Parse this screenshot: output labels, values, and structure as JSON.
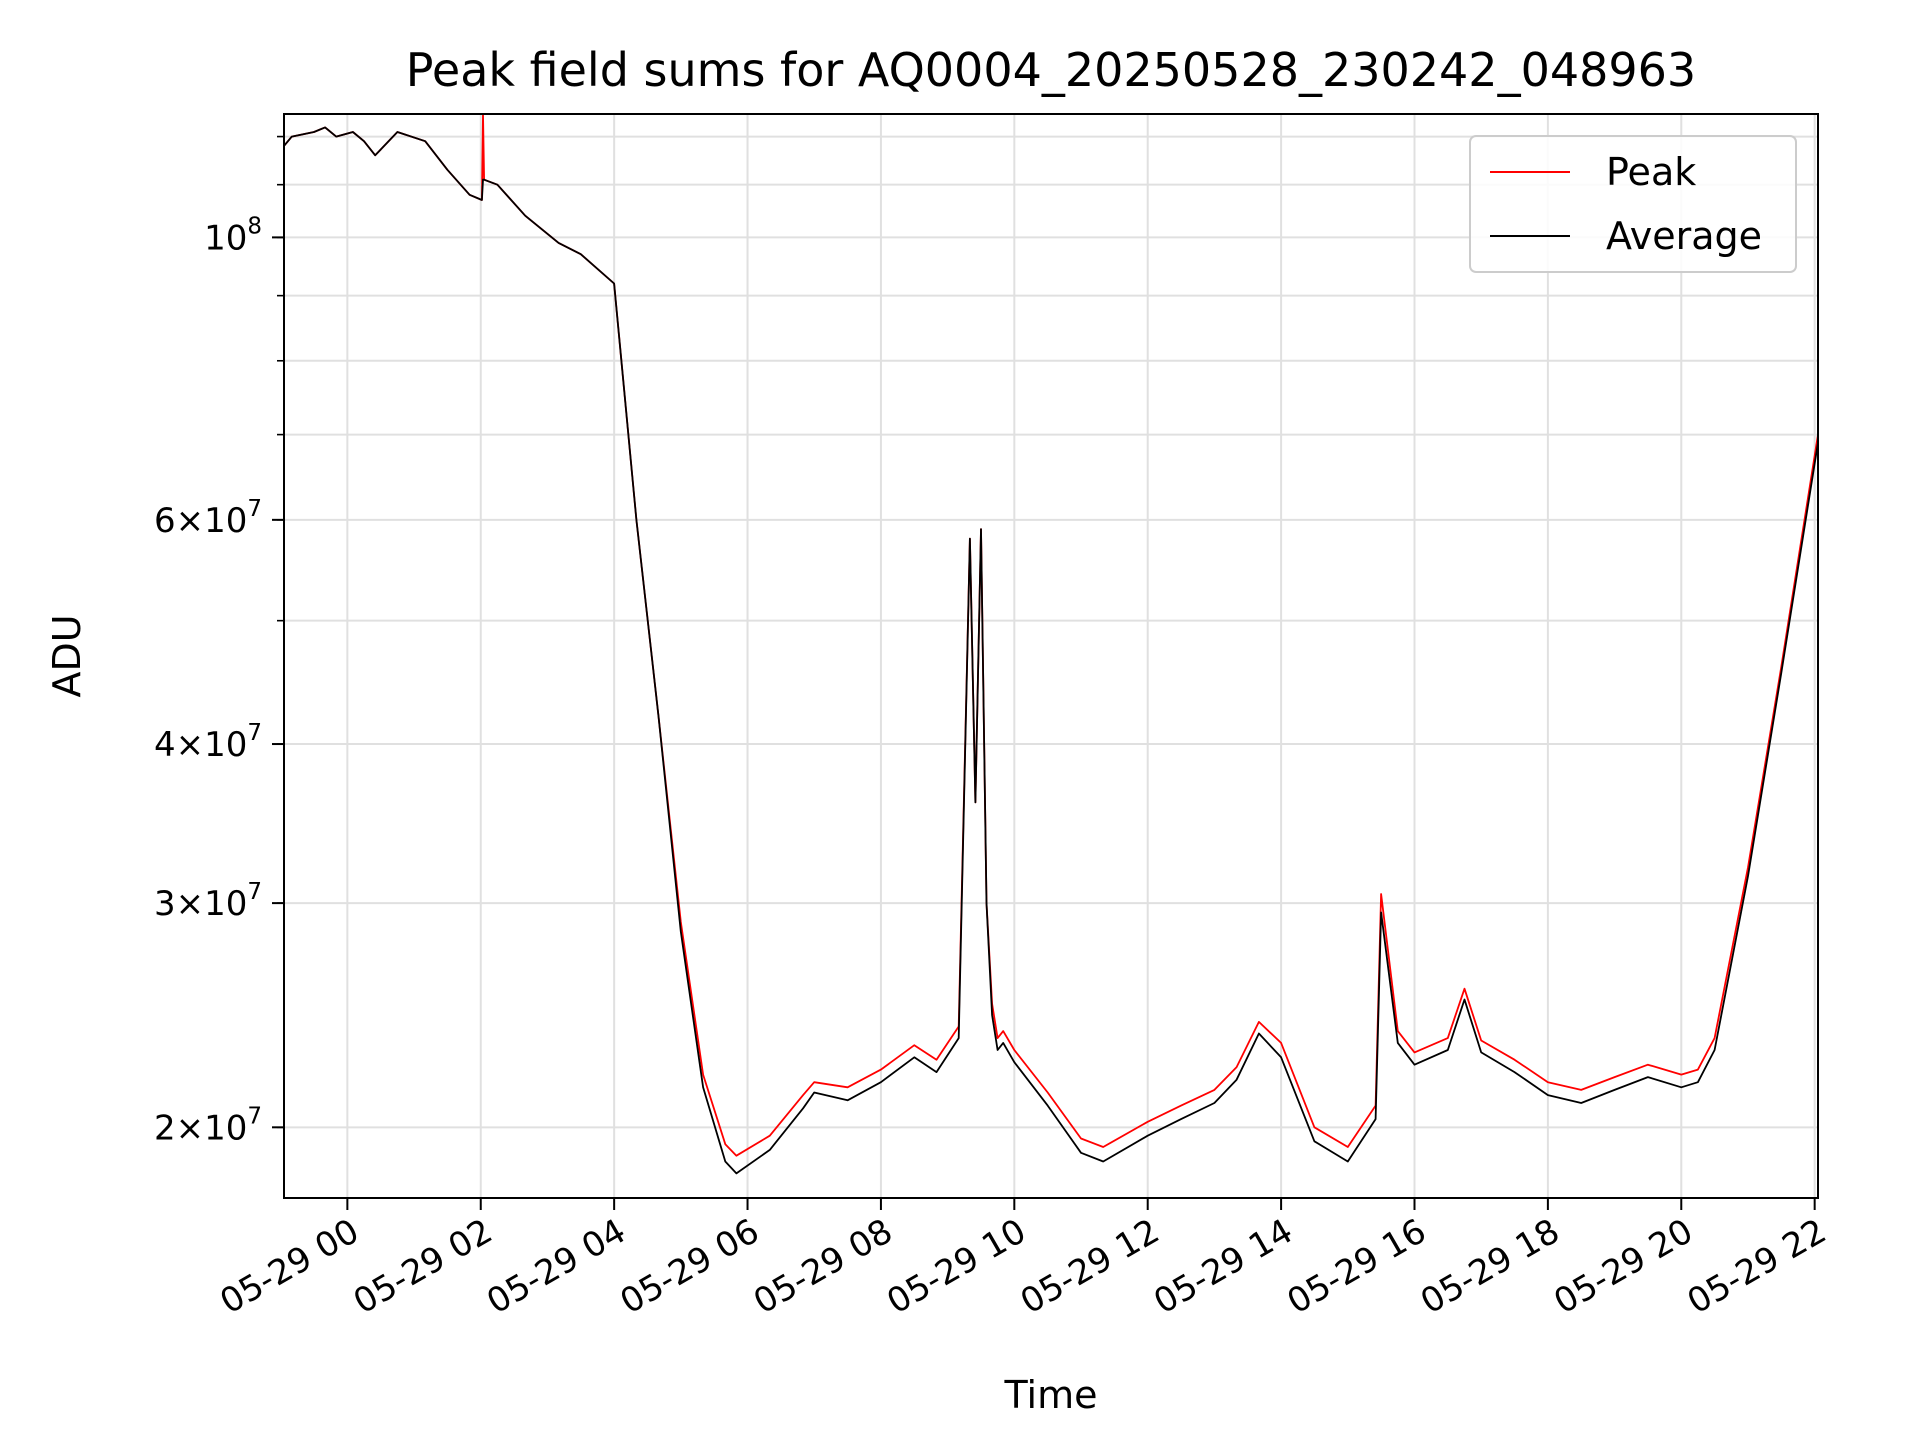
{
  "chart_data": {
    "type": "line",
    "title": "Peak field sums for AQ0004_20250528_230242_048963",
    "xlabel": "Time",
    "ylabel": "ADU",
    "yscale": "log",
    "xlim": [
      "2025-05-28 23:03",
      "2025-05-29 22:03"
    ],
    "ylim": [
      17600000,
      125000000
    ],
    "grid": true,
    "legend_position": "top-right",
    "x_ticks": [
      "05-29 00",
      "05-29 02",
      "05-29 04",
      "05-29 06",
      "05-29 08",
      "05-29 10",
      "05-29 12",
      "05-29 14",
      "05-29 16",
      "05-29 18",
      "05-29 20",
      "05-29 22"
    ],
    "y_ticks": [
      {
        "value": 100000000,
        "mantissa": "",
        "exponent": "8"
      },
      {
        "value": 60000000,
        "mantissa": "6",
        "exponent": "7"
      },
      {
        "value": 40000000,
        "mantissa": "4",
        "exponent": "7"
      },
      {
        "value": 30000000,
        "mantissa": "3",
        "exponent": "7"
      },
      {
        "value": 20000000,
        "mantissa": "2",
        "exponent": "7"
      }
    ],
    "series": [
      {
        "name": "Peak",
        "color": "#ff0000",
        "x": [
          "2025-05-28 23:03",
          "2025-05-28 23:10",
          "2025-05-28 23:30",
          "2025-05-28 23:40",
          "2025-05-28 23:50",
          "2025-05-29 00:05",
          "2025-05-29 00:15",
          "2025-05-29 00:25",
          "2025-05-29 00:45",
          "2025-05-29 01:10",
          "2025-05-29 01:30",
          "2025-05-29 01:50",
          "2025-05-29 02:01",
          "2025-05-29 02:02",
          "2025-05-29 02:03",
          "2025-05-29 02:15",
          "2025-05-29 02:40",
          "2025-05-29 03:10",
          "2025-05-29 03:30",
          "2025-05-29 04:00",
          "2025-05-29 04:20",
          "2025-05-29 04:40",
          "2025-05-29 05:00",
          "2025-05-29 05:20",
          "2025-05-29 05:40",
          "2025-05-29 05:50",
          "2025-05-29 06:20",
          "2025-05-29 06:50",
          "2025-05-29 07:00",
          "2025-05-29 07:30",
          "2025-05-29 08:00",
          "2025-05-29 08:30",
          "2025-05-29 08:50",
          "2025-05-29 09:10",
          "2025-05-29 09:20",
          "2025-05-29 09:25",
          "2025-05-29 09:30",
          "2025-05-29 09:35",
          "2025-05-29 09:40",
          "2025-05-29 09:45",
          "2025-05-29 09:50",
          "2025-05-29 10:00",
          "2025-05-29 10:30",
          "2025-05-29 11:00",
          "2025-05-29 11:20",
          "2025-05-29 12:00",
          "2025-05-29 12:30",
          "2025-05-29 13:00",
          "2025-05-29 13:20",
          "2025-05-29 13:40",
          "2025-05-29 14:00",
          "2025-05-29 14:30",
          "2025-05-29 15:00",
          "2025-05-29 15:25",
          "2025-05-29 15:30",
          "2025-05-29 15:45",
          "2025-05-29 16:00",
          "2025-05-29 16:30",
          "2025-05-29 16:45",
          "2025-05-29 17:00",
          "2025-05-29 17:30",
          "2025-05-29 18:00",
          "2025-05-29 18:30",
          "2025-05-29 19:00",
          "2025-05-29 19:30",
          "2025-05-29 20:00",
          "2025-05-29 20:15",
          "2025-05-29 20:30",
          "2025-05-29 21:00",
          "2025-05-29 21:30",
          "2025-05-29 22:03"
        ],
        "y": [
          118000000,
          120000000,
          121000000,
          122000000,
          120000000,
          121000000,
          119000000,
          116000000,
          121000000,
          119000000,
          113000000,
          108000000,
          107000000,
          125000000,
          111000000,
          110000000,
          104000000,
          99000000,
          97000000,
          92000000,
          60000000,
          42000000,
          29000000,
          22000000,
          19400000,
          19000000,
          19700000,
          21200000,
          21700000,
          21500000,
          22200000,
          23200000,
          22600000,
          24000000,
          58000000,
          36000000,
          59000000,
          30000000,
          25000000,
          23500000,
          23800000,
          23000000,
          21300000,
          19600000,
          19300000,
          20200000,
          20800000,
          21400000,
          22300000,
          24200000,
          23300000,
          20000000,
          19300000,
          20800000,
          30500000,
          23800000,
          22900000,
          23500000,
          25700000,
          23400000,
          22600000,
          21700000,
          21400000,
          21900000,
          22400000,
          22000000,
          22200000,
          23500000,
          32000000,
          46000000,
          70000000
        ]
      },
      {
        "name": "Average",
        "color": "#000000",
        "x": [
          "2025-05-28 23:03",
          "2025-05-28 23:10",
          "2025-05-28 23:30",
          "2025-05-28 23:40",
          "2025-05-28 23:50",
          "2025-05-29 00:05",
          "2025-05-29 00:15",
          "2025-05-29 00:25",
          "2025-05-29 00:45",
          "2025-05-29 01:10",
          "2025-05-29 01:30",
          "2025-05-29 01:50",
          "2025-05-29 02:01",
          "2025-05-29 02:02",
          "2025-05-29 02:03",
          "2025-05-29 02:15",
          "2025-05-29 02:40",
          "2025-05-29 03:10",
          "2025-05-29 03:30",
          "2025-05-29 04:00",
          "2025-05-29 04:20",
          "2025-05-29 04:40",
          "2025-05-29 05:00",
          "2025-05-29 05:20",
          "2025-05-29 05:40",
          "2025-05-29 05:50",
          "2025-05-29 06:20",
          "2025-05-29 06:50",
          "2025-05-29 07:00",
          "2025-05-29 07:30",
          "2025-05-29 08:00",
          "2025-05-29 08:30",
          "2025-05-29 08:50",
          "2025-05-29 09:10",
          "2025-05-29 09:20",
          "2025-05-29 09:25",
          "2025-05-29 09:30",
          "2025-05-29 09:35",
          "2025-05-29 09:40",
          "2025-05-29 09:45",
          "2025-05-29 09:50",
          "2025-05-29 10:00",
          "2025-05-29 10:30",
          "2025-05-29 11:00",
          "2025-05-29 11:20",
          "2025-05-29 12:00",
          "2025-05-29 12:30",
          "2025-05-29 13:00",
          "2025-05-29 13:20",
          "2025-05-29 13:40",
          "2025-05-29 14:00",
          "2025-05-29 14:30",
          "2025-05-29 15:00",
          "2025-05-29 15:25",
          "2025-05-29 15:30",
          "2025-05-29 15:45",
          "2025-05-29 16:00",
          "2025-05-29 16:30",
          "2025-05-29 16:45",
          "2025-05-29 17:00",
          "2025-05-29 17:30",
          "2025-05-29 18:00",
          "2025-05-29 18:30",
          "2025-05-29 19:00",
          "2025-05-29 19:30",
          "2025-05-29 20:00",
          "2025-05-29 20:15",
          "2025-05-29 20:30",
          "2025-05-29 21:00",
          "2025-05-29 21:30",
          "2025-05-29 22:03"
        ],
        "y": [
          118000000,
          120000000,
          121000000,
          122000000,
          120000000,
          121000000,
          119000000,
          116000000,
          121000000,
          119000000,
          113000000,
          108000000,
          107000000,
          111000000,
          111000000,
          110000000,
          104000000,
          99000000,
          97000000,
          92000000,
          60000000,
          42000000,
          28500000,
          21500000,
          18800000,
          18400000,
          19200000,
          20700000,
          21300000,
          21000000,
          21700000,
          22700000,
          22100000,
          23500000,
          58000000,
          36000000,
          59000000,
          30000000,
          24500000,
          23000000,
          23300000,
          22500000,
          20800000,
          19100000,
          18800000,
          19700000,
          20300000,
          20900000,
          21800000,
          23700000,
          22700000,
          19500000,
          18800000,
          20300000,
          29500000,
          23300000,
          22400000,
          23000000,
          25200000,
          22900000,
          22100000,
          21200000,
          20900000,
          21400000,
          21900000,
          21500000,
          21700000,
          23000000,
          31500000,
          45500000,
          69000000
        ]
      }
    ]
  }
}
